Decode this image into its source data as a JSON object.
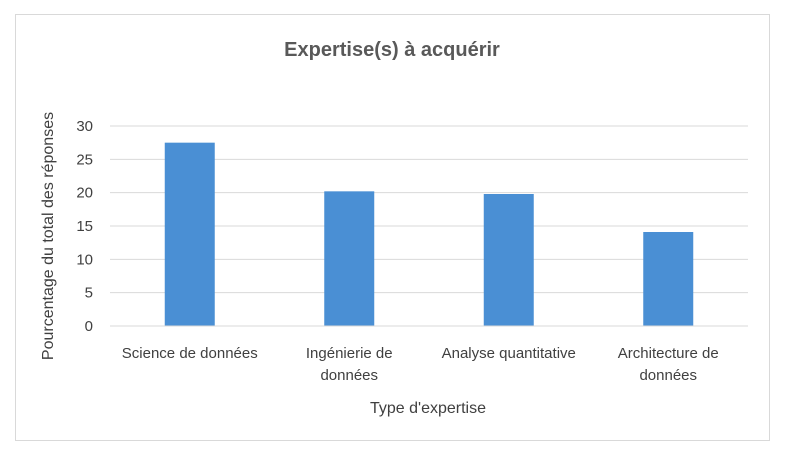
{
  "chart_data": {
    "type": "bar",
    "title": "Expertise(s) à acquérir",
    "xlabel": "Type d'expertise",
    "ylabel": "Pourcentage du total des réponses",
    "categories": [
      [
        "Science de données"
      ],
      [
        "Ingénierie de",
        "données"
      ],
      [
        "Analyse quantitative"
      ],
      [
        "Architecture de",
        "données"
      ]
    ],
    "values": [
      27.5,
      20.2,
      19.8,
      14.1
    ],
    "ylim": [
      0,
      30
    ],
    "yticks": [
      0,
      5,
      10,
      15,
      20,
      25,
      30
    ],
    "grid": true,
    "bar_color": "#4a8fd4",
    "grid_color": "#d9d9d9"
  }
}
